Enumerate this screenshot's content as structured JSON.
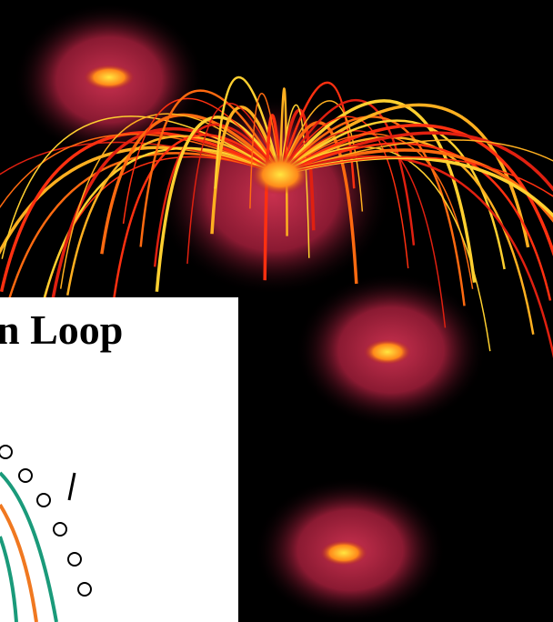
{
  "slide": {
    "title_fragment": "n Loop"
  }
}
